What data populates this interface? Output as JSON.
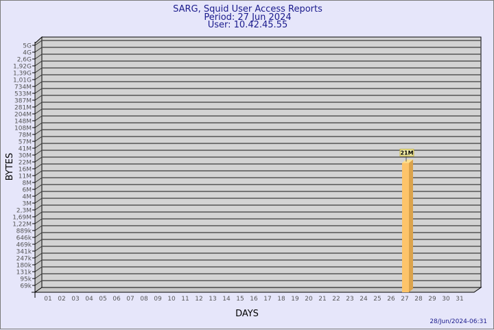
{
  "chart_data": {
    "type": "bar",
    "title": "SARG, Squid User Access Reports",
    "subtitle_lines": [
      "Period: 27 Jun 2024",
      "User: 10.42.45.55"
    ],
    "xlabel": "DAYS",
    "ylabel": "BYTES",
    "y_ticks": [
      "5G",
      "4G",
      "2,6G",
      "1,92G",
      "1,39G",
      "1,01G",
      "734M",
      "533M",
      "387M",
      "281M",
      "204M",
      "148M",
      "108M",
      "78M",
      "57M",
      "41M",
      "30M",
      "22M",
      "16M",
      "11M",
      "8M",
      "6M",
      "4M",
      "3M",
      "2,3M",
      "1,69M",
      "1,22M",
      "889k",
      "646k",
      "469k",
      "341k",
      "247k",
      "180k",
      "131k",
      "95k",
      "69k"
    ],
    "categories": [
      "01",
      "02",
      "03",
      "04",
      "05",
      "06",
      "07",
      "08",
      "09",
      "10",
      "11",
      "12",
      "13",
      "14",
      "15",
      "16",
      "17",
      "18",
      "19",
      "20",
      "21",
      "22",
      "23",
      "24",
      "25",
      "26",
      "27",
      "28",
      "29",
      "30",
      "31"
    ],
    "series": [
      {
        "values": [
          null,
          null,
          null,
          null,
          null,
          null,
          null,
          null,
          null,
          null,
          null,
          null,
          null,
          null,
          null,
          null,
          null,
          null,
          null,
          null,
          null,
          null,
          null,
          null,
          null,
          null,
          21000000,
          null,
          null,
          null,
          null
        ],
        "labels": {
          "27": "21M"
        },
        "color": "#fdc46a"
      }
    ],
    "grid": true,
    "y_scale": "log"
  },
  "footer": {
    "timestamp": "28/Jun/2024-06:31"
  },
  "colors": {
    "text": "#1a1a8c",
    "wall": "#d3d3d3",
    "background": "#e6e6fa"
  }
}
